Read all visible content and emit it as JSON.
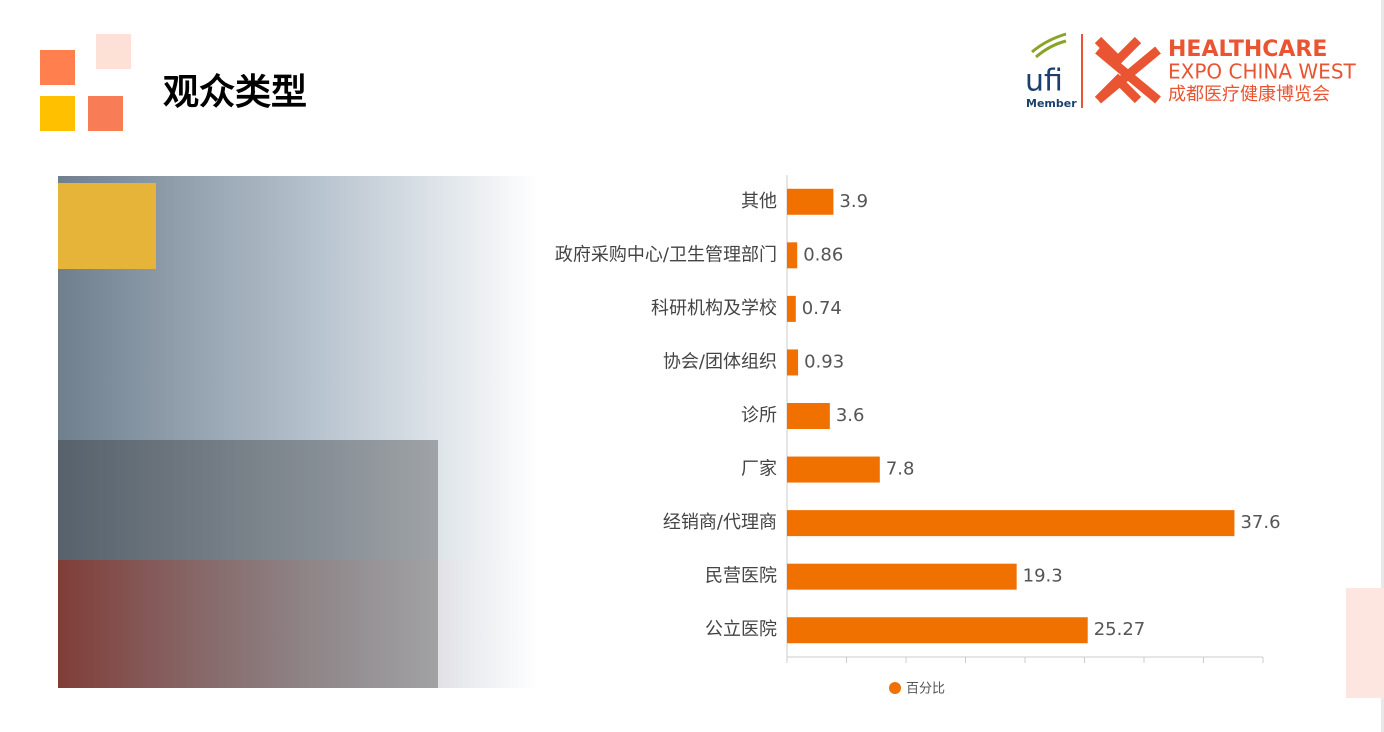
{
  "header": {
    "title": "观众类型"
  },
  "logo": {
    "ufi": "ufi",
    "member": "Member",
    "line1": "HEALTHCARE",
    "line2": "EXPO CHINA WEST",
    "line3": "成都医疗健康博览会"
  },
  "chart_data": {
    "type": "bar",
    "orientation": "horizontal",
    "categories": [
      "其他",
      "政府采购中心/卫生管理部门",
      "科研机构及学校",
      "协会/团体组织",
      "诊所",
      "厂家",
      "经销商/代理商",
      "民营医院",
      "公立医院"
    ],
    "series": [
      {
        "name": "百分比",
        "color": "#f07000",
        "values": [
          3.9,
          0.86,
          0.74,
          0.93,
          3.6,
          7.8,
          37.6,
          19.3,
          25.27
        ]
      }
    ],
    "xlim": [
      0,
      40
    ],
    "xticks": [
      0,
      5,
      10,
      15,
      20,
      25,
      30,
      35,
      40
    ],
    "legend": "bottom"
  }
}
